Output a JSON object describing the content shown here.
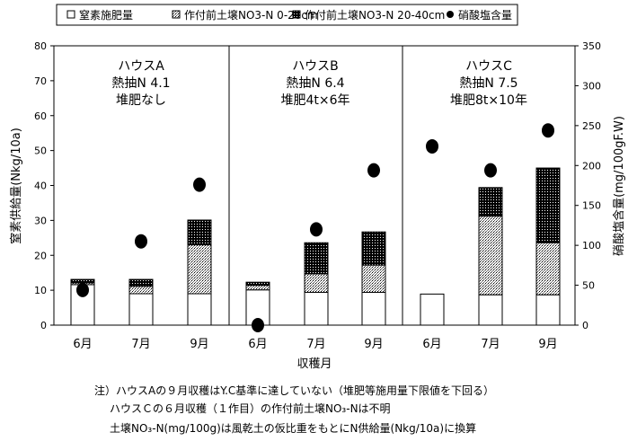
{
  "chart_data": {
    "type": "bar",
    "stacked": true,
    "title": "",
    "legend": [
      "窒素施肥量",
      "作付前土壌NO3-N 0-20cm",
      "作付前土壌NO3-N 20-40cm",
      "硝酸塩含量"
    ],
    "legend_position": "top",
    "xlabel": "収穫月",
    "ylabel": "窒素供給量(Nkg/10a)",
    "y2label": "硝酸塩含量(mg/100gF.W)",
    "ylim": [
      0,
      80
    ],
    "y2lim": [
      0,
      350
    ],
    "yticks": [
      "0",
      "10",
      "20",
      "30",
      "40",
      "50",
      "60",
      "70",
      "80"
    ],
    "y2ticks": [
      "0",
      "50",
      "100",
      "150",
      "200",
      "250",
      "300",
      "350"
    ],
    "groups": [
      {
        "name": "ハウスA",
        "line2": "熱抽N 4.1",
        "line3": "堆肥なし"
      },
      {
        "name": "ハウスB",
        "line2": "熱抽N 6.4",
        "line3": "堆肥4t×6年"
      },
      {
        "name": "ハウスC",
        "line2": "熱抽N 7.5",
        "line3": "堆肥8t×10年"
      }
    ],
    "categories": [
      "6月",
      "7月",
      "9月",
      "6月",
      "7月",
      "9月",
      "6月",
      "7月",
      "9月"
    ],
    "series": [
      {
        "name": "窒素施肥量",
        "values": [
          11.6,
          9.0,
          9.0,
          10.1,
          9.4,
          9.4,
          8.9,
          8.7,
          8.7
        ]
      },
      {
        "name": "作付前土壌NO3-N 0-20cm",
        "values": [
          0.5,
          2.1,
          14.0,
          1.3,
          5.3,
          7.8,
          0,
          22.5,
          14.9
        ]
      },
      {
        "name": "作付前土壌NO3-N 20-40cm",
        "values": [
          1.0,
          2.0,
          7.1,
          0.9,
          8.9,
          9.5,
          0,
          8.2,
          21.4
        ]
      },
      {
        "name": "硝酸塩含量",
        "axis": "right",
        "values": [
          44,
          105,
          176,
          0,
          120,
          194,
          224,
          194,
          244
        ]
      }
    ]
  },
  "notes": [
    "注）ハウスAの９月収穫はY.C基準に達していない（堆肥等施用量下限値を下回る）",
    "ハウスＣの６月収穫（１作目）の作付前土壌NO₃-Nは不明",
    "土壌NO₃-N(mg/100g)は風乾土の仮比重をもとにN供給量(Nkg/10a)に換算"
  ]
}
